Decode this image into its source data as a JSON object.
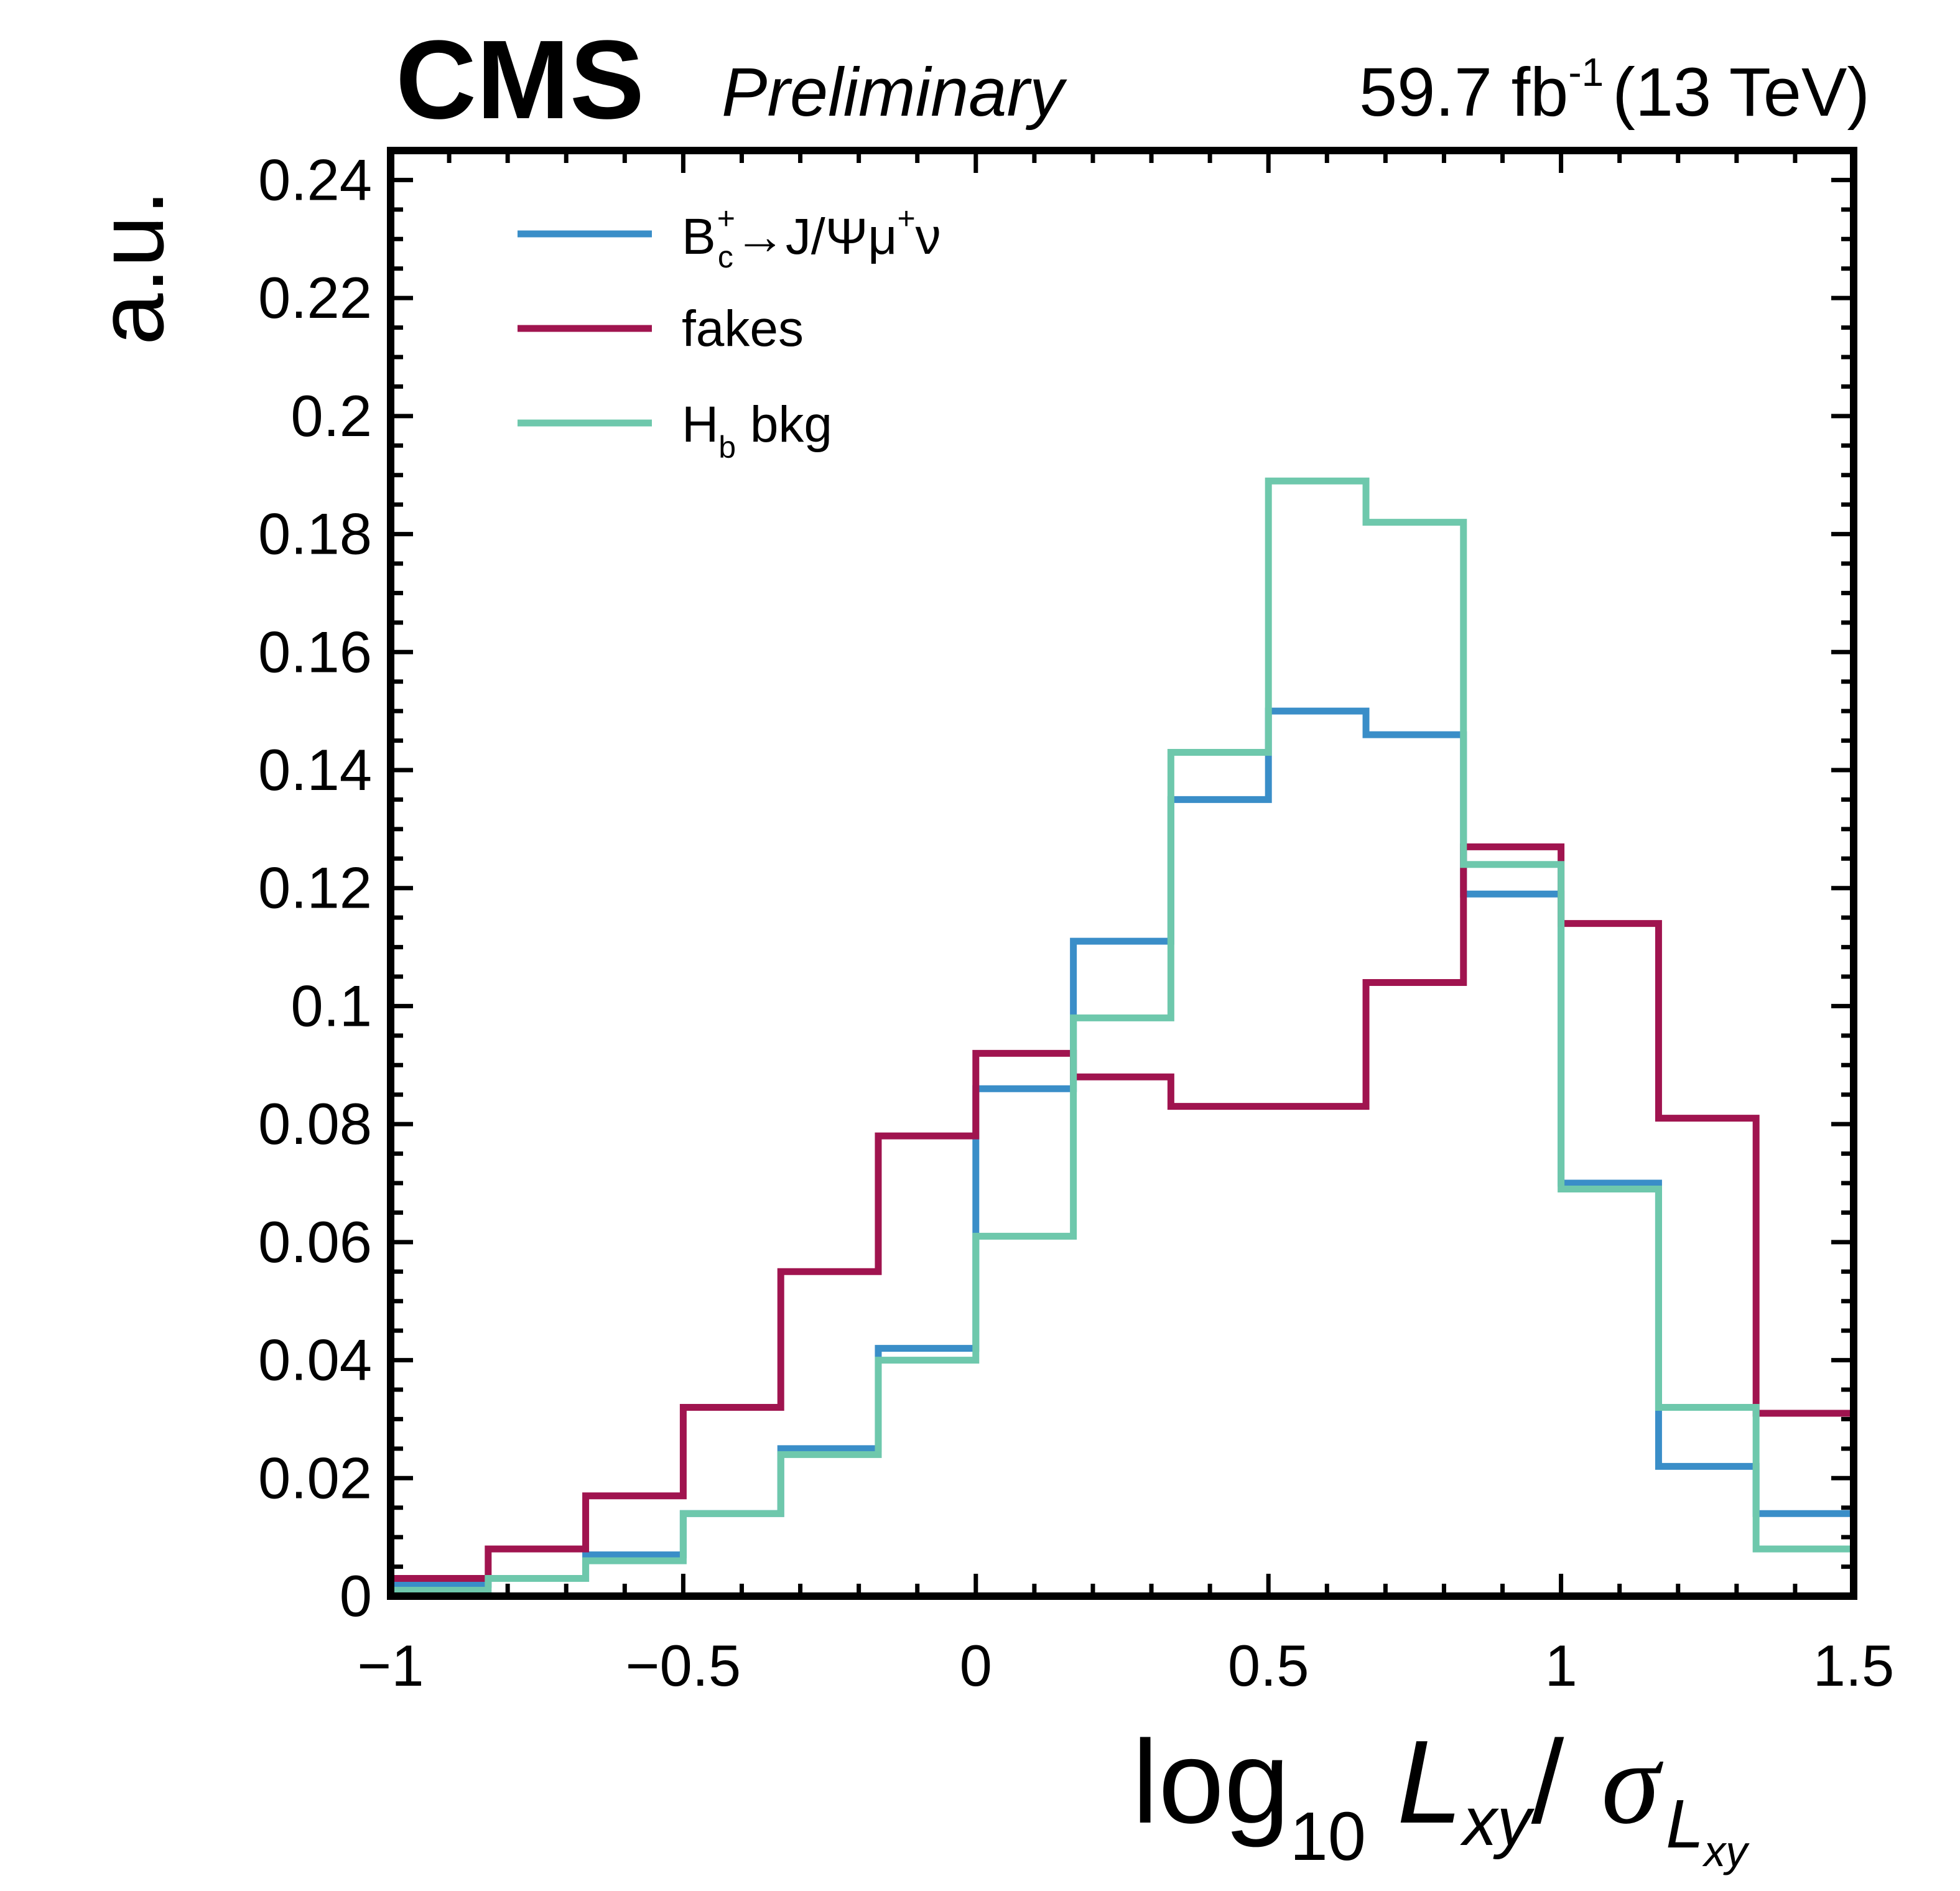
{
  "header": {
    "experiment": "CMS",
    "status": "Preliminary",
    "lumi_value": "59.7 fb",
    "lumi_exponent": "-1",
    "energy": "(13 TeV)"
  },
  "axes": {
    "ylabel": "a.u.",
    "xlabel": {
      "log": "log",
      "log_sub": "10",
      "L": "L",
      "L_sub": "xy",
      "slash": "/",
      "sigma": "σ",
      "sigma_sub_L": "L",
      "sigma_sub_xy": "xy"
    },
    "xtick_labels": [
      "−1",
      "−0.5",
      "0",
      "0.5",
      "1",
      "1.5"
    ],
    "ytick_labels": [
      "0",
      "0.02",
      "0.04",
      "0.06",
      "0.08",
      "0.1",
      "0.12",
      "0.14",
      "0.16",
      "0.18",
      "0.2",
      "0.22",
      "0.24"
    ]
  },
  "legend": {
    "entries": [
      {
        "series": 0,
        "base": "B",
        "sup": "+",
        "sub": "c",
        "tail": "→J/Ψμ",
        "tail_sup": "+",
        "tail_end": "ν"
      },
      {
        "series": 1,
        "text": "fakes"
      },
      {
        "series": 2,
        "base": "H",
        "sub": "b",
        "tail": " bkg"
      }
    ]
  },
  "chart_data": {
    "type": "histogram",
    "bin_edges": [
      -1.0,
      -0.8333,
      -0.6667,
      -0.5,
      -0.3333,
      -0.1667,
      0.0,
      0.1667,
      0.3333,
      0.5,
      0.6667,
      0.8333,
      1.0,
      1.1667,
      1.3333,
      1.5
    ],
    "xlim": [
      -1,
      1.5
    ],
    "ylim": [
      0,
      0.245
    ],
    "xticks": [
      -1,
      -0.5,
      0,
      0.5,
      1,
      1.5
    ],
    "yticks": [
      0,
      0.02,
      0.04,
      0.06,
      0.08,
      0.1,
      0.12,
      0.14,
      0.16,
      0.18,
      0.2,
      0.22,
      0.24
    ],
    "series": [
      {
        "name": "B_c^+→J/Ψμ^+ν",
        "color": "#3a8ec8",
        "values": [
          0.002,
          0.003,
          0.007,
          0.014,
          0.025,
          0.042,
          0.086,
          0.111,
          0.135,
          0.15,
          0.146,
          0.119,
          0.07,
          0.022,
          0.014
        ]
      },
      {
        "name": "fakes",
        "color": "#a0144f",
        "values": [
          0.003,
          0.008,
          0.017,
          0.032,
          0.055,
          0.078,
          0.092,
          0.088,
          0.083,
          0.083,
          0.104,
          0.127,
          0.114,
          0.081,
          0.031
        ]
      },
      {
        "name": "H_b bkg",
        "color": "#6ec8ac",
        "values": [
          0.001,
          0.003,
          0.006,
          0.014,
          0.024,
          0.04,
          0.061,
          0.098,
          0.143,
          0.189,
          0.182,
          0.124,
          0.069,
          0.032,
          0.008
        ]
      }
    ],
    "legend_position": "top-left",
    "grid": false
  }
}
